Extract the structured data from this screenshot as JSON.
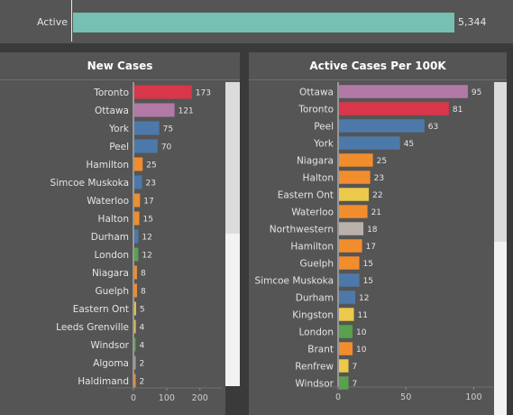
{
  "top": {
    "label": "Active",
    "value": 5344,
    "value_text": "5,344",
    "bar_color": "#76bfb3",
    "max": 5800
  },
  "chart_data": [
    {
      "type": "bar",
      "orientation": "horizontal",
      "title": "New Cases",
      "categories": [
        "Toronto",
        "Ottawa",
        "York",
        "Peel",
        "Hamilton",
        "Simcoe Muskoka",
        "Waterloo",
        "Halton",
        "Durham",
        "London",
        "Niagara",
        "Guelph",
        "Eastern Ont",
        "Leeds Grenville",
        "Windsor",
        "Algoma",
        "Haldimand"
      ],
      "values": [
        173,
        121,
        75,
        70,
        25,
        23,
        17,
        15,
        12,
        12,
        8,
        8,
        5,
        4,
        4,
        2,
        2
      ],
      "value_labels": [
        "173",
        "121",
        "75",
        "70",
        "25",
        "23",
        "17",
        "15",
        "12",
        "12",
        "8",
        "8",
        "5",
        "4",
        "4",
        "2",
        "2"
      ],
      "colors": [
        "#d9364a",
        "#b279a6",
        "#4d79aa",
        "#4d79aa",
        "#f28d2e",
        "#4d79aa",
        "#f28d2e",
        "#f28d2e",
        "#4d79aa",
        "#59a14f",
        "#f28d2e",
        "#f28d2e",
        "#ecc94b",
        "#ecc94b",
        "#59a14f",
        "#9e9e9e",
        "#f28d2e"
      ],
      "xlim": [
        0,
        240
      ],
      "xticks": [
        0,
        100,
        200
      ],
      "xtick_labels": [
        "0",
        "100",
        "200"
      ],
      "grid": false
    },
    {
      "type": "bar",
      "orientation": "horizontal",
      "title": "Active Cases Per 100K",
      "categories": [
        "Ottawa",
        "Toronto",
        "Peel",
        "York",
        "Niagara",
        "Halton",
        "Eastern Ont",
        "Waterloo",
        "Northwestern",
        "Hamilton",
        "Guelph",
        "Simcoe Muskoka",
        "Durham",
        "Kingston",
        "London",
        "Brant",
        "Renfrew",
        "Windsor"
      ],
      "values": [
        95,
        81,
        63,
        45,
        25,
        23,
        22,
        21,
        18,
        17,
        15,
        15,
        12,
        11,
        10,
        10,
        7,
        7
      ],
      "value_labels": [
        "95",
        "81",
        "63",
        "45",
        "25",
        "23",
        "22",
        "21",
        "18",
        "17",
        "15",
        "15",
        "12",
        "11",
        "10",
        "10",
        "7",
        "7"
      ],
      "colors": [
        "#b279a6",
        "#d9364a",
        "#4d79aa",
        "#4d79aa",
        "#f28d2e",
        "#f28d2e",
        "#ecc94b",
        "#f28d2e",
        "#bab0ac",
        "#f28d2e",
        "#f28d2e",
        "#4d79aa",
        "#4d79aa",
        "#ecc94b",
        "#59a14f",
        "#f28d2e",
        "#ecc94b",
        "#59a14f"
      ],
      "xlim": [
        0,
        115
      ],
      "xticks": [
        0,
        50,
        100
      ],
      "xtick_labels": [
        "0",
        "50",
        "100"
      ],
      "grid": false
    }
  ]
}
